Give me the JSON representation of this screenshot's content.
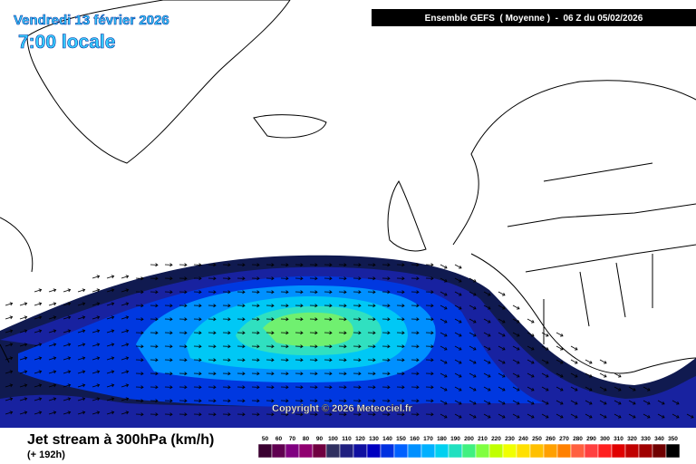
{
  "header": {
    "date": "Vendredi 13 février 2026",
    "time": "7:00 locale",
    "model": "Ensemble GEFS  ( Moyenne )  -  06 Z du 05/02/2026"
  },
  "copyright": "Copyright © 2026 Meteociel.fr",
  "footer": {
    "title": "Jet stream à 300hPa (km/h)",
    "lead": "(+ 192h)"
  },
  "scale": {
    "labels": [
      50,
      60,
      70,
      80,
      90,
      100,
      110,
      120,
      130,
      140,
      150,
      160,
      170,
      180,
      190,
      200,
      210,
      220,
      230,
      240,
      250,
      260,
      270,
      280,
      290,
      300,
      310,
      320,
      330,
      340,
      350
    ],
    "colors": [
      "#3a0030",
      "#600050",
      "#800080",
      "#900070",
      "#700040",
      "#303060",
      "#202080",
      "#1010a0",
      "#0000c0",
      "#0030e0",
      "#0060ff",
      "#0090ff",
      "#00b0ff",
      "#00d0f0",
      "#20e0c0",
      "#40f080",
      "#80ff40",
      "#c0ff00",
      "#f0ff00",
      "#ffe000",
      "#ffc000",
      "#ffa000",
      "#ff8000",
      "#ff6040",
      "#ff4040",
      "#ff2020",
      "#e00000",
      "#c00000",
      "#a00000",
      "#700000",
      "#000000"
    ]
  }
}
